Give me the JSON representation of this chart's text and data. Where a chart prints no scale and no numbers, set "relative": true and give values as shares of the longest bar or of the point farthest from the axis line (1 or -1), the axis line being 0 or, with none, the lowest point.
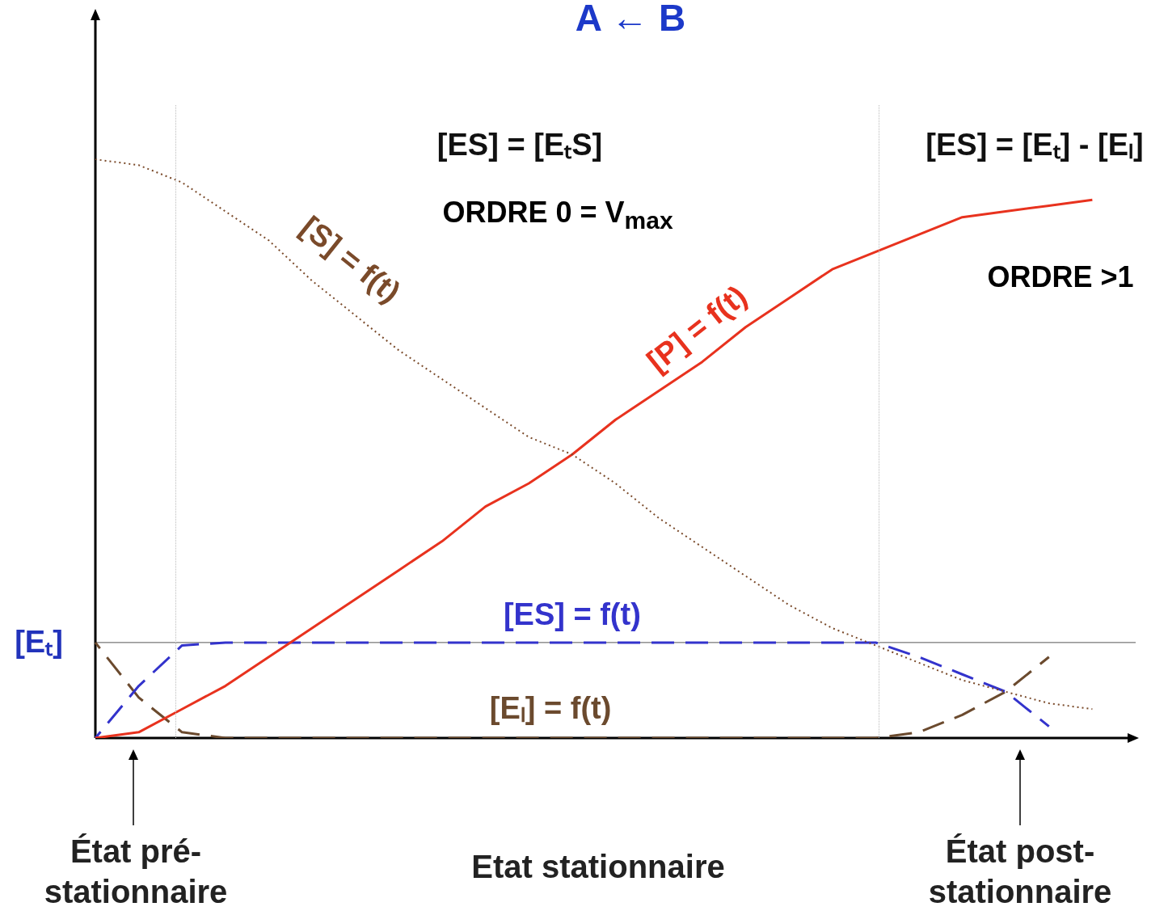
{
  "chart_data": {
    "type": "line",
    "title": "A ← B",
    "relative": true,
    "marker": "none",
    "categories": [
      null,
      null,
      null,
      null,
      null,
      null,
      null,
      null,
      null,
      null,
      null,
      null,
      null,
      null,
      null,
      null,
      null,
      null,
      null,
      null,
      null,
      null,
      null,
      null,
      null
    ],
    "series": [
      {
        "name": "[S] = f(t)",
        "color": "#7a4a2a",
        "line_style": "dotted",
        "values": [
          1.0,
          0.99,
          0.96,
          0.91,
          0.86,
          0.79,
          0.73,
          0.67,
          0.62,
          0.57,
          0.52,
          0.49,
          0.44,
          0.38,
          0.33,
          0.28,
          0.23,
          0.19,
          0.16,
          0.13,
          0.1,
          0.08,
          0.06,
          0.05,
          null
        ]
      },
      {
        "name": "[P] = f(t)",
        "color": "#e8321e",
        "line_style": "solid",
        "values": [
          0,
          0.01,
          0.05,
          0.09,
          0.14,
          0.19,
          0.24,
          0.29,
          0.34,
          0.4,
          0.44,
          0.49,
          0.55,
          0.6,
          0.65,
          0.71,
          0.76,
          0.81,
          0.84,
          0.87,
          0.9,
          0.91,
          0.92,
          0.93,
          null
        ]
      },
      {
        "name": "[ES] = f(t)",
        "color": "#3333cc",
        "line_style": "dashed",
        "values": [
          0,
          0.09,
          0.16,
          0.165,
          0.165,
          0.165,
          0.165,
          0.165,
          0.165,
          0.165,
          0.165,
          0.165,
          0.165,
          0.165,
          0.165,
          0.165,
          0.165,
          0.165,
          0.165,
          0.14,
          0.11,
          0.08,
          0.02,
          null,
          null
        ]
      },
      {
        "name": "[Eₗ] = f(t)",
        "color": "#6b4a2e",
        "line_style": "dashed",
        "values": [
          0.165,
          0.07,
          0.01,
          0,
          0,
          0,
          0,
          0,
          0,
          0,
          0,
          0,
          0,
          0,
          0,
          0,
          0,
          0,
          0,
          0.01,
          0.04,
          0.08,
          0.14,
          null,
          null
        ]
      }
    ],
    "ref_lines": [
      {
        "axis": "y",
        "value": 0.165,
        "label": "[Eₜ]",
        "color": "#555555"
      }
    ],
    "annotations": [
      "[ES] = [EₜS]",
      "ORDRE 0 = V$_{max}$",
      "[ES] = [Eₜ] - [Eₗ]",
      "ORDRE >1",
      "État pré-stationnaire",
      "Etat stationnaire",
      "État post-stationnaire"
    ]
  }
}
